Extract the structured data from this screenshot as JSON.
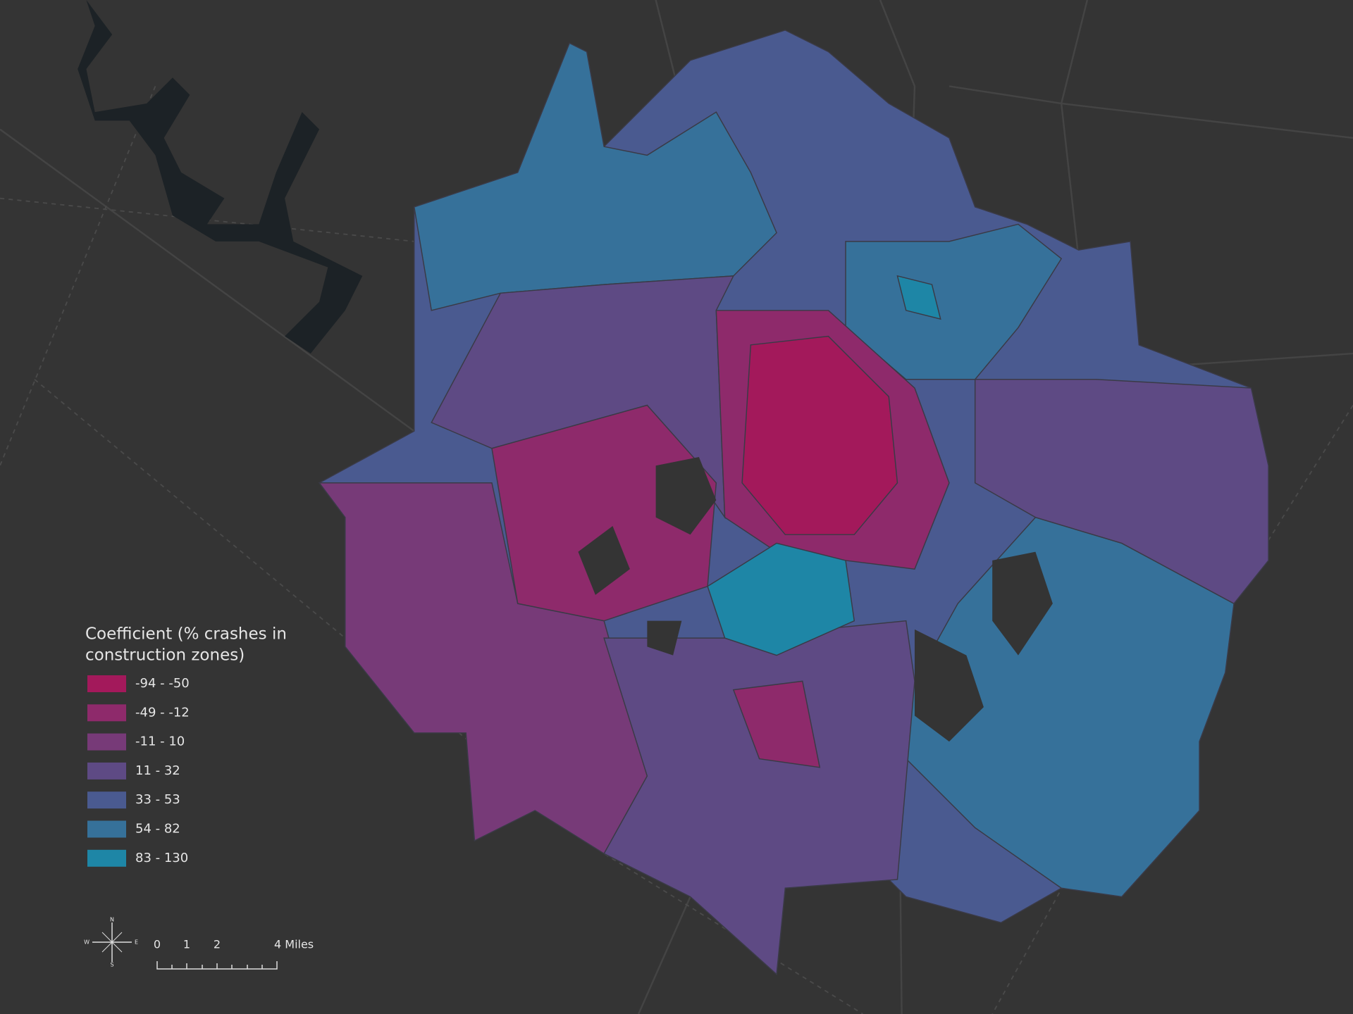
{
  "legend": {
    "title_lines": [
      "Coefficient (% crashes in",
      "construction zones)"
    ],
    "items": [
      {
        "label": "-94 - -50",
        "color": "#a3195b"
      },
      {
        "label": "-49 - -12",
        "color": "#8e2a6b"
      },
      {
        "label": "-11 - 10",
        "color": "#773a78"
      },
      {
        "label": "11 - 32",
        "color": "#5e4a84"
      },
      {
        "label": "33 - 53",
        "color": "#4a5a90"
      },
      {
        "label": "54 - 82",
        "color": "#36719a"
      },
      {
        "label": "83 - 130",
        "color": "#1e86a6"
      }
    ]
  },
  "compass": {
    "n": "N",
    "s": "S",
    "e": "E",
    "w": "W"
  },
  "scale": {
    "labels": [
      "0",
      "1",
      "2",
      "4 Miles"
    ]
  }
}
